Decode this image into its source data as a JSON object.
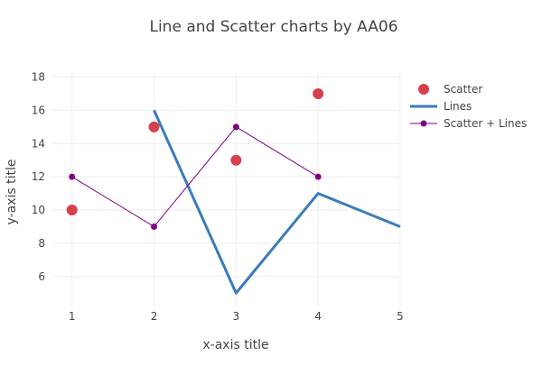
{
  "chart_data": {
    "type": "scatter",
    "title": "Line and Scatter charts by AA06",
    "xlabel": "x-axis title",
    "ylabel": "y-axis title",
    "xlim": [
      0.75,
      5
    ],
    "ylim": [
      4.2,
      18.3
    ],
    "x_ticks": [
      1,
      2,
      3,
      4,
      5
    ],
    "y_ticks": [
      6,
      8,
      10,
      12,
      14,
      16,
      18
    ],
    "grid": true,
    "legend_position": "top-right",
    "series": [
      {
        "name": "Scatter",
        "mode": "markers",
        "color": "#d6404f",
        "x": [
          1,
          2,
          3,
          4
        ],
        "y": [
          10,
          15,
          13,
          17
        ]
      },
      {
        "name": "Lines",
        "mode": "lines",
        "color": "#3a7bba",
        "x": [
          2,
          3,
          4,
          5
        ],
        "y": [
          16,
          5,
          11,
          9
        ]
      },
      {
        "name": "Scatter + Lines",
        "mode": "lines+markers",
        "color": "#800080",
        "x": [
          1,
          2,
          3,
          4
        ],
        "y": [
          12,
          9,
          15,
          12
        ]
      }
    ]
  }
}
